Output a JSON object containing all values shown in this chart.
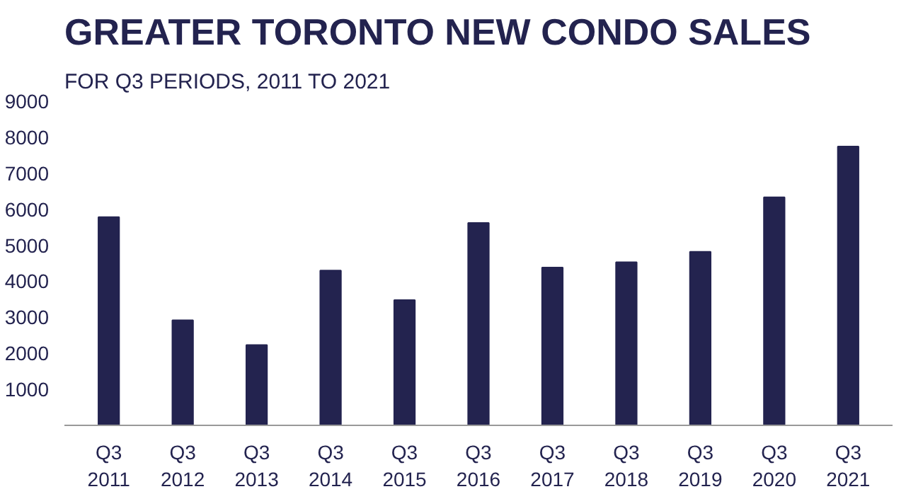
{
  "chart_data": {
    "type": "bar",
    "title": "GREATER TORONTO NEW CONDO SALES",
    "subtitle": "FOR Q3 PERIODS, 2011 TO 2021",
    "categories": [
      "Q3\n2011",
      "Q3\n2012",
      "Q3\n2013",
      "Q3\n2014",
      "Q3\n2015",
      "Q3\n2016",
      "Q3\n2017",
      "Q3\n2018",
      "Q3\n2019",
      "Q3\n2020",
      "Q3\n2021"
    ],
    "values": [
      5780,
      2920,
      2230,
      4300,
      3480,
      5620,
      4380,
      4530,
      4820,
      6330,
      7740
    ],
    "color": "#23234f",
    "ylim": [
      0,
      9000
    ],
    "yticks": [
      1000,
      2000,
      3000,
      4000,
      5000,
      6000,
      7000,
      8000,
      9000
    ],
    "grid": false
  }
}
